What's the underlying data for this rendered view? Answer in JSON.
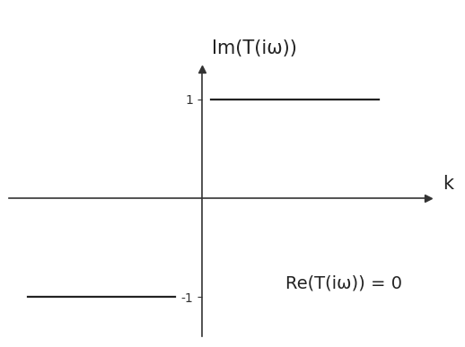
{
  "chart_data": {
    "type": "line",
    "y_label": "Im(T(iω))",
    "x_label": "k",
    "annotation": "Re(T(iω)) = 0",
    "x": [
      -4.6,
      -0.7,
      0,
      0.25,
      4.7
    ],
    "values": [
      -1,
      -1,
      null,
      1,
      1
    ],
    "color": "#222222",
    "xlim": [
      -5.1,
      6
    ],
    "ylim": [
      -1.4,
      1.3
    ],
    "xticks": [],
    "yticks": [
      -1,
      1
    ],
    "tick_labels": "y",
    "grid": false
  }
}
